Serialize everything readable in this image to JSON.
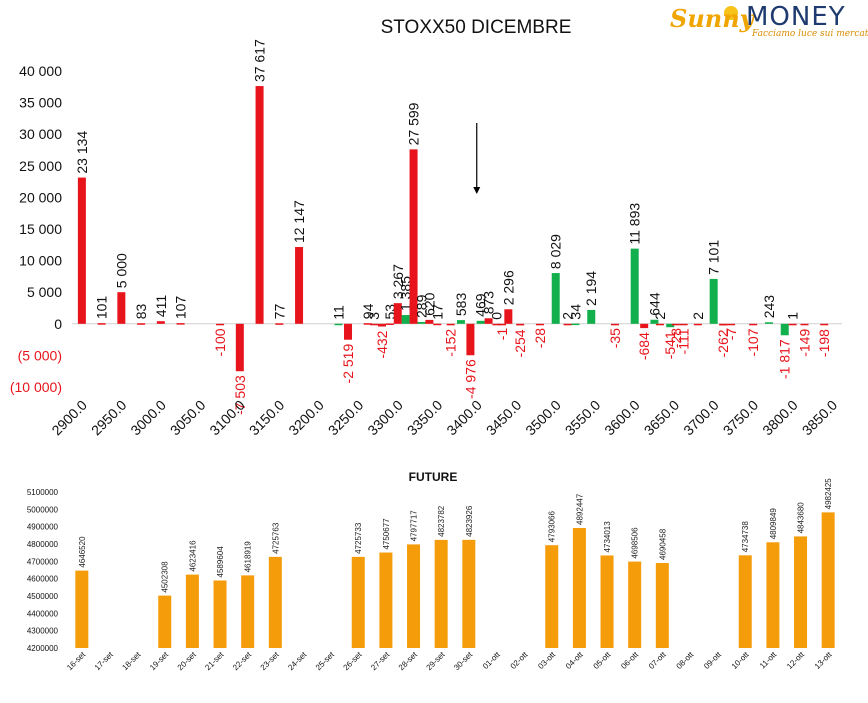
{
  "logo": {
    "brand_a": "Sunny",
    "brand_b": "MONEY",
    "tagline": "Facciamo luce sui mercati"
  },
  "colors": {
    "call": "#e8141c",
    "put": "#12b04c",
    "future": "#f59c0b",
    "neg_label": "#e8141c"
  },
  "chart_data": [
    {
      "type": "bar",
      "title": "STOXX50 DICEMBRE",
      "ylim": [
        -10000,
        40000
      ],
      "y_ticks": [
        {
          "value": 40000,
          "label": "40 000"
        },
        {
          "value": 35000,
          "label": "35 000"
        },
        {
          "value": 30000,
          "label": "30 000"
        },
        {
          "value": 25000,
          "label": "25 000"
        },
        {
          "value": 20000,
          "label": "20 000"
        },
        {
          "value": 15000,
          "label": "15 000"
        },
        {
          "value": 10000,
          "label": "10 000"
        },
        {
          "value": 5000,
          "label": "5 000"
        },
        {
          "value": 0,
          "label": "0"
        },
        {
          "value": -5000,
          "label": "(5 000)"
        },
        {
          "value": -10000,
          "label": "(10 000)"
        }
      ],
      "x_ticks": [
        "2900.0",
        "2950.0",
        "3000.0",
        "3050.0",
        "3100.0",
        "3150.0",
        "3200.0",
        "3250.0",
        "3300.0",
        "3350.0",
        "3400.0",
        "3450.0",
        "3500.0",
        "3550.0",
        "3600.0",
        "3650.0",
        "3700.0",
        "3750.0",
        "3800.0",
        "3850.0"
      ],
      "annotation": "arrow-down-at-3400",
      "bars": [
        {
          "x": 2900,
          "value": 23134,
          "label": "23 134",
          "color": "call"
        },
        {
          "x": 2925,
          "value": 101,
          "label": "101",
          "color": "call"
        },
        {
          "x": 2950,
          "value": 5000,
          "label": "5 000",
          "color": "call"
        },
        {
          "x": 2975,
          "value": 83,
          "label": "83",
          "color": "call"
        },
        {
          "x": 3000,
          "value": 411,
          "label": "411",
          "color": "call"
        },
        {
          "x": 3025,
          "value": 107,
          "label": "107",
          "color": "call"
        },
        {
          "x": 3075,
          "value": -100,
          "label": "-100",
          "color": "call"
        },
        {
          "x": 3100,
          "value": -7503,
          "label": "-7 503",
          "color": "call"
        },
        {
          "x": 3125,
          "value": 37617,
          "label": "37 617",
          "color": "call"
        },
        {
          "x": 3150,
          "value": 77,
          "label": "77",
          "color": "call"
        },
        {
          "x": 3175,
          "value": 12147,
          "label": "12 147",
          "color": "call"
        },
        {
          "x": 3225,
          "value": 11,
          "label": "11",
          "color": "put"
        },
        {
          "x": 3237,
          "value": -2519,
          "label": "-2 519",
          "color": "call"
        },
        {
          "x": 3262,
          "value": 94,
          "label": "94",
          "color": "call"
        },
        {
          "x": 3270,
          "value": 3,
          "label": "3",
          "color": "call"
        },
        {
          "x": 3280,
          "value": -432,
          "label": "-432",
          "color": "call"
        },
        {
          "x": 3290,
          "value": 53,
          "label": "53",
          "color": "call"
        },
        {
          "x": 3300,
          "value": 3267,
          "label": "3 267",
          "color": "call"
        },
        {
          "x": 3310,
          "value": 1385,
          "label": "1 385",
          "color": "put"
        },
        {
          "x": 3320,
          "value": 27599,
          "label": "27 599",
          "color": "call"
        },
        {
          "x": 3330,
          "value": 289,
          "label": "289",
          "color": "put"
        },
        {
          "x": 3340,
          "value": 620,
          "label": "620",
          "color": "call"
        },
        {
          "x": 3350,
          "value": 17,
          "label": "17",
          "color": "call"
        },
        {
          "x": 3367,
          "value": -152,
          "label": "-152",
          "color": "call"
        },
        {
          "x": 3380,
          "value": 583,
          "label": "583",
          "color": "put"
        },
        {
          "x": 3392,
          "value": -4976,
          "label": "-4 976",
          "color": "call"
        },
        {
          "x": 3405,
          "value": 469,
          "label": "469",
          "color": "put"
        },
        {
          "x": 3415,
          "value": 873,
          "label": "873",
          "color": "call"
        },
        {
          "x": 3425,
          "value": 0,
          "label": "0",
          "color": "call"
        },
        {
          "x": 3432,
          "value": -1,
          "label": "-1",
          "color": "call"
        },
        {
          "x": 3440,
          "value": 2296,
          "label": "2 296",
          "color": "call"
        },
        {
          "x": 3455,
          "value": -254,
          "label": "-254",
          "color": "call"
        },
        {
          "x": 3480,
          "value": -28,
          "label": "-28",
          "color": "call"
        },
        {
          "x": 3500,
          "value": 8029,
          "label": "8 029",
          "color": "put"
        },
        {
          "x": 3515,
          "value": 2,
          "label": "2",
          "color": "call"
        },
        {
          "x": 3525,
          "value": 34,
          "label": "34",
          "color": "put"
        },
        {
          "x": 3545,
          "value": 2194,
          "label": "2 194",
          "color": "put"
        },
        {
          "x": 3575,
          "value": -35,
          "label": "-35",
          "color": "call"
        },
        {
          "x": 3600,
          "value": 11893,
          "label": "11 893",
          "color": "put"
        },
        {
          "x": 3612,
          "value": -684,
          "label": "-684",
          "color": "call"
        },
        {
          "x": 3625,
          "value": 644,
          "label": "644",
          "color": "put"
        },
        {
          "x": 3632,
          "value": 2,
          "label": "2",
          "color": "call"
        },
        {
          "x": 3645,
          "value": -541,
          "label": "-541",
          "color": "put"
        },
        {
          "x": 3652,
          "value": -28,
          "label": "-28",
          "color": "call"
        },
        {
          "x": 3662,
          "value": -111,
          "label": "-111",
          "color": "call"
        },
        {
          "x": 3680,
          "value": 2,
          "label": "2",
          "color": "call"
        },
        {
          "x": 3700,
          "value": 7101,
          "label": "7 101",
          "color": "put"
        },
        {
          "x": 3712,
          "value": -262,
          "label": "-262",
          "color": "call"
        },
        {
          "x": 3722,
          "value": -7,
          "label": "-7",
          "color": "call"
        },
        {
          "x": 3750,
          "value": -107,
          "label": "-107",
          "color": "call"
        },
        {
          "x": 3770,
          "value": 243,
          "label": "243",
          "color": "put"
        },
        {
          "x": 3790,
          "value": -1817,
          "label": "-1 817",
          "color": "put"
        },
        {
          "x": 3800,
          "value": 1,
          "label": "1",
          "color": "call"
        },
        {
          "x": 3815,
          "value": -149,
          "label": "-149",
          "color": "call"
        },
        {
          "x": 3840,
          "value": -198,
          "label": "-198",
          "color": "call"
        }
      ]
    },
    {
      "type": "bar",
      "title": "FUTURE",
      "ylim": [
        4200000,
        5100000
      ],
      "y_ticks": [
        4200000,
        4300000,
        4400000,
        4500000,
        4600000,
        4700000,
        4800000,
        4900000,
        5000000,
        5100000
      ],
      "categories": [
        "16-set",
        "17-set",
        "18-set",
        "19-set",
        "20-set",
        "21-set",
        "22-set",
        "23-set",
        "24-set",
        "25-set",
        "26-set",
        "27-set",
        "28-set",
        "29-set",
        "30-set",
        "01-ott",
        "02-ott",
        "03-ott",
        "04-ott",
        "05-ott",
        "06-ott",
        "07-ott",
        "08-ott",
        "09-ott",
        "10-ott",
        "11-ott",
        "12-ott",
        "13-ott"
      ],
      "values": [
        4646520,
        null,
        null,
        4502308,
        4623416,
        4589604,
        4618919,
        4725763,
        null,
        null,
        4725733,
        4750677,
        4797717,
        4823782,
        4823926,
        null,
        null,
        4793066,
        4892447,
        4734013,
        4698506,
        4690458,
        null,
        null,
        4734738,
        4809849,
        4843680,
        4982425
      ]
    }
  ]
}
